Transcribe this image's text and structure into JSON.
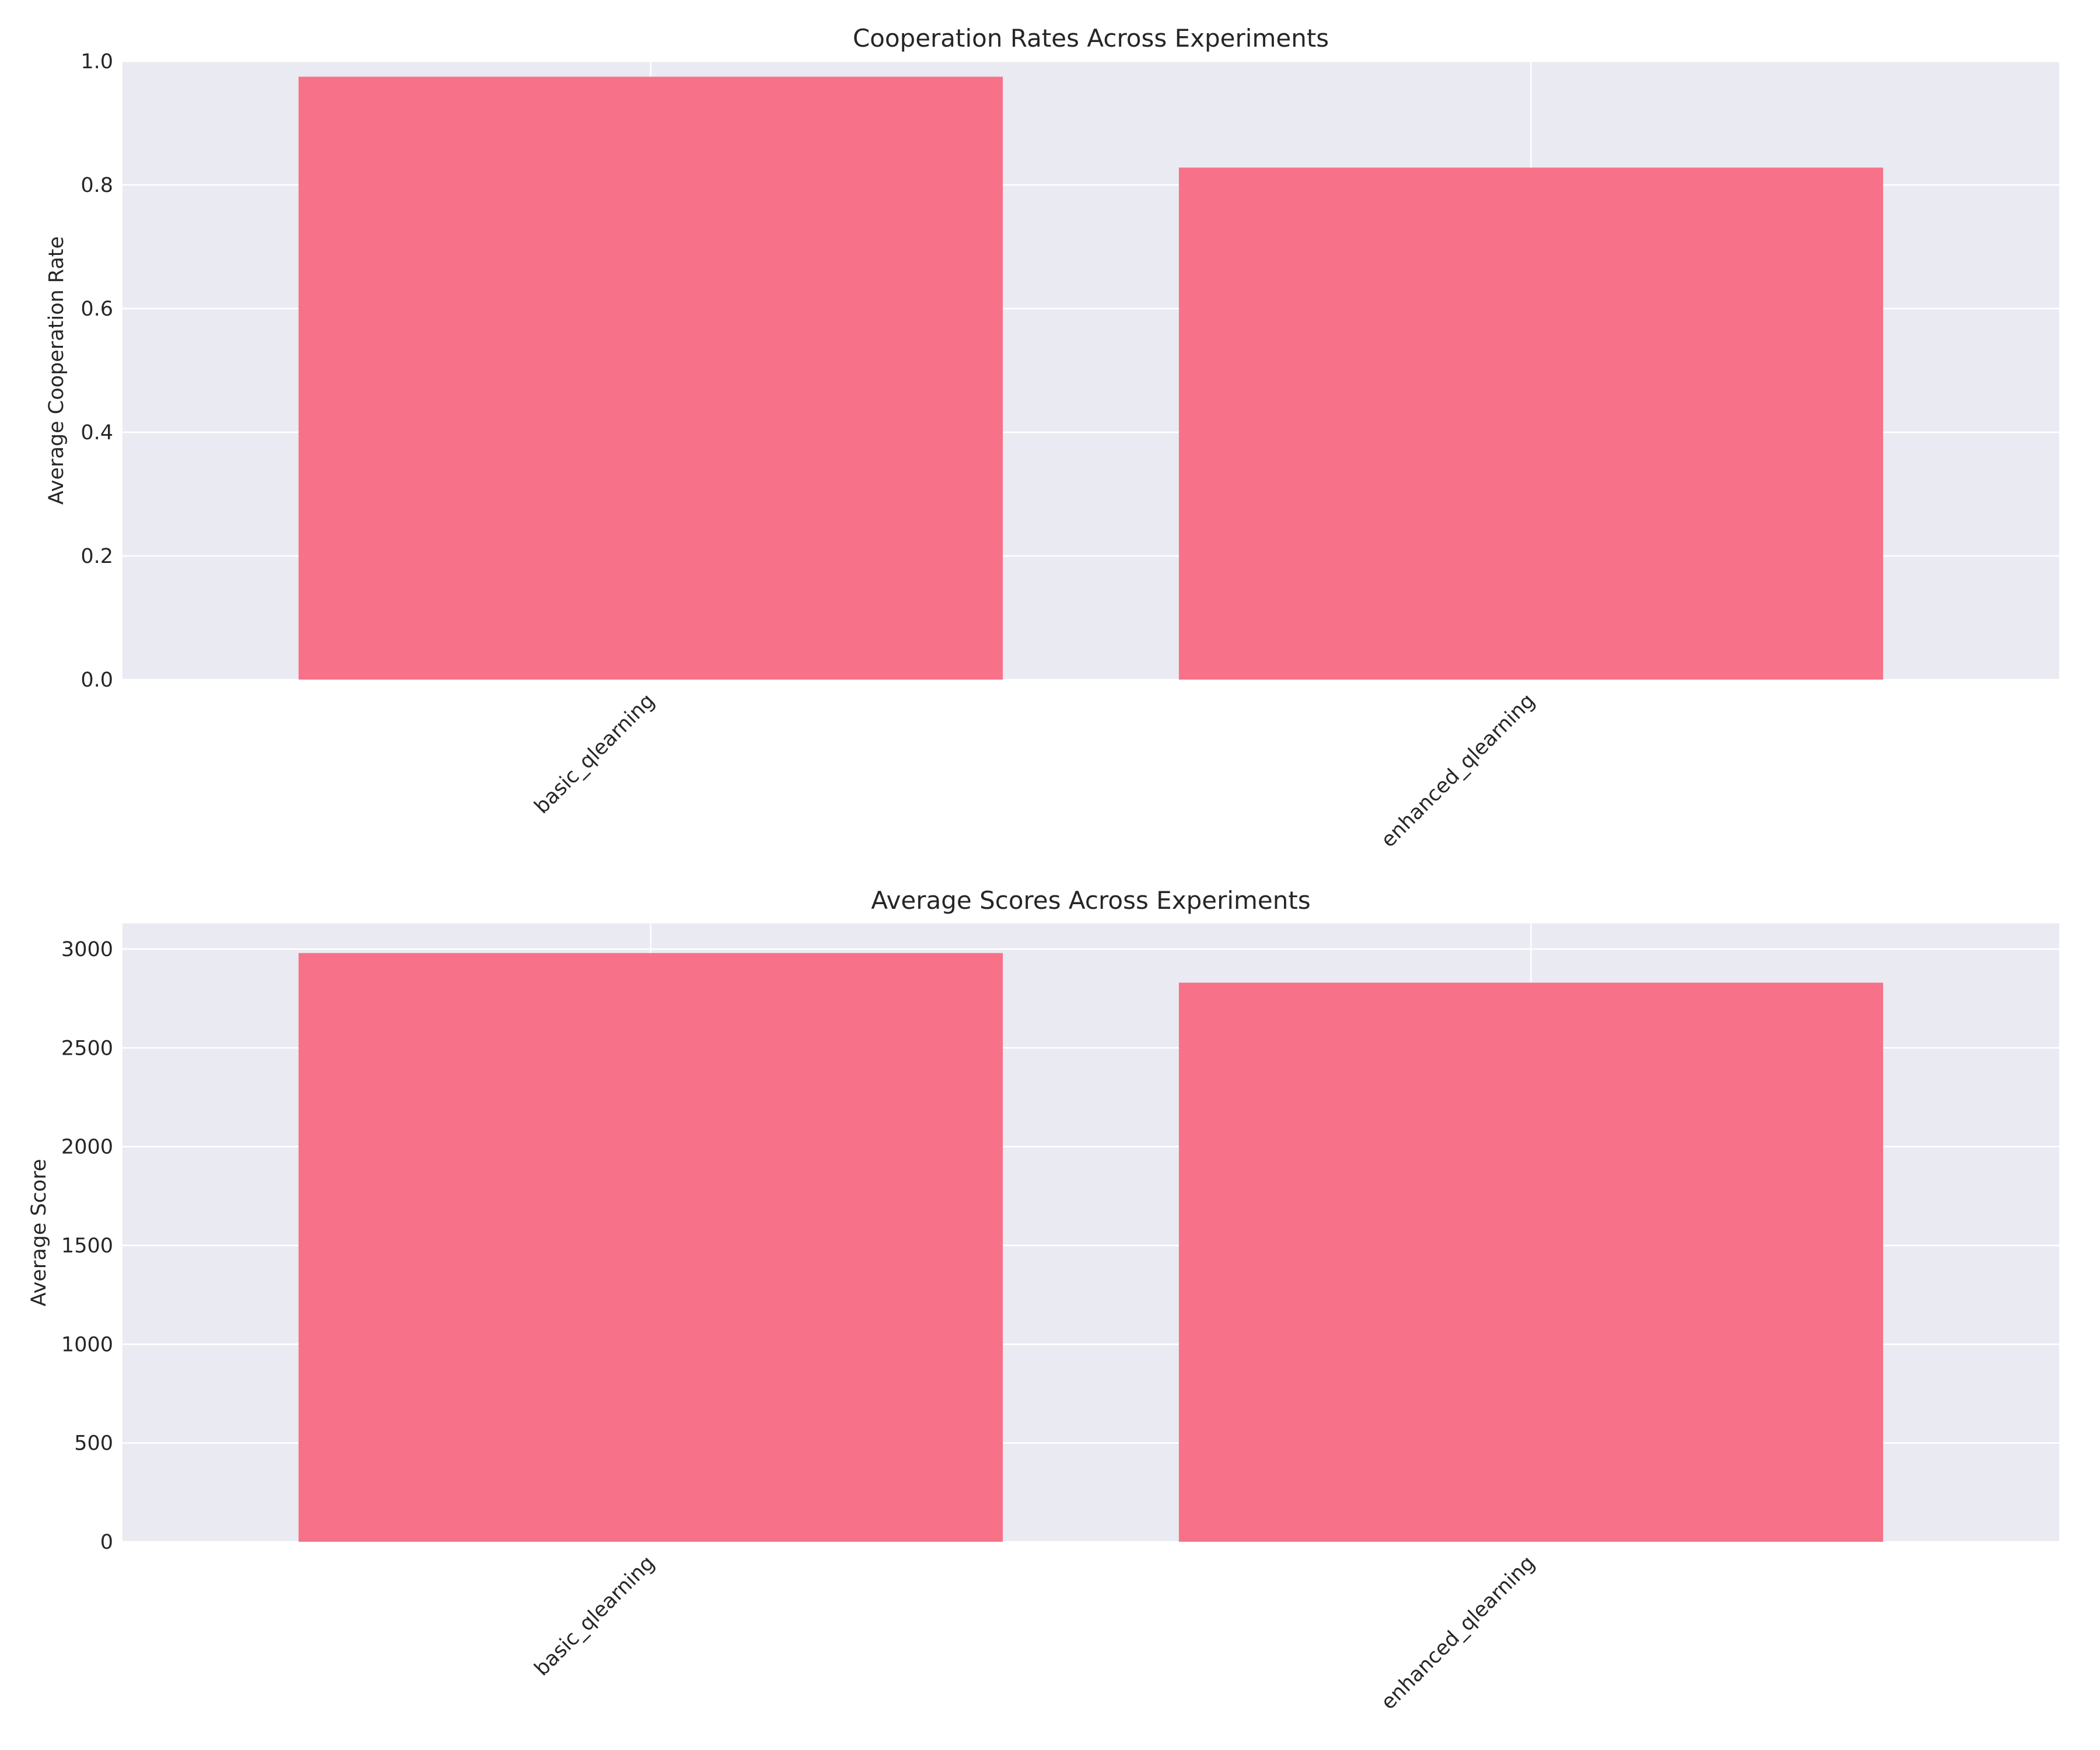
{
  "colors": {
    "bar": "#f77189",
    "plot_background": "#eaeaf2",
    "grid": "#ffffff",
    "text": "#262626"
  },
  "chart_data": [
    {
      "type": "bar",
      "title": "Cooperation Rates Across Experiments",
      "xlabel": "",
      "ylabel": "Average Cooperation Rate",
      "categories": [
        "basic_qlearning",
        "enhanced_qlearning"
      ],
      "values": [
        0.975,
        0.828
      ],
      "ylim": [
        0,
        1.0
      ],
      "yticks": [
        0,
        0.2,
        0.4,
        0.6,
        0.8,
        1.0
      ],
      "ytick_labels": [
        "0.0",
        "0.2",
        "0.4",
        "0.6",
        "0.8",
        "1.0"
      ],
      "xtick_rotation": "45 degrees",
      "grid": true,
      "legend": "none"
    },
    {
      "type": "bar",
      "title": "Average Scores Across Experiments",
      "xlabel": "",
      "ylabel": "Average Score",
      "categories": [
        "basic_qlearning",
        "enhanced_qlearning"
      ],
      "values": [
        2980,
        2830
      ],
      "ylim": [
        0,
        3130
      ],
      "yticks": [
        0,
        500,
        1000,
        1500,
        2000,
        2500,
        3000
      ],
      "ytick_labels": [
        "0",
        "500",
        "1000",
        "1500",
        "2000",
        "2500",
        "3000"
      ],
      "xtick_rotation": "45 degrees",
      "grid": true,
      "legend": "none"
    }
  ]
}
